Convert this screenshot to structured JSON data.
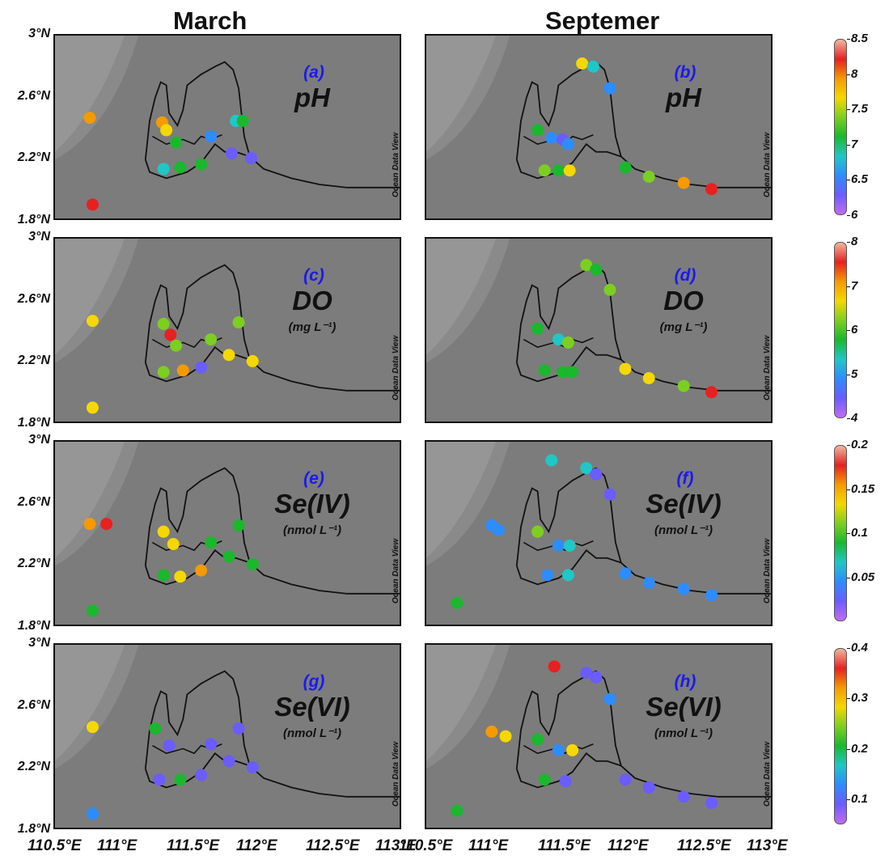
{
  "column_titles": {
    "march": "March",
    "september": "Septemer"
  },
  "y_ticks": [
    "3°N",
    "2.6°N",
    "2.2°N",
    "1.8°N"
  ],
  "x_ticks": [
    "110.5°E",
    "111°E",
    "111.5°E",
    "112°E",
    "112.5°E",
    "113°E"
  ],
  "watermark": "Ocean Data View",
  "panels": [
    {
      "letter": "(a)",
      "variable": "pH",
      "unit": "",
      "month": "March",
      "points": [
        [
          110.75,
          2.47,
          8.05
        ],
        [
          111.27,
          2.44,
          7.85
        ],
        [
          111.3,
          2.39,
          7.55
        ],
        [
          111.37,
          2.31,
          7.1
        ],
        [
          111.28,
          2.14,
          6.9
        ],
        [
          111.4,
          2.15,
          7.0
        ],
        [
          111.55,
          2.17,
          7.0
        ],
        [
          111.62,
          2.35,
          6.6
        ],
        [
          111.77,
          2.24,
          6.35
        ],
        [
          111.8,
          2.45,
          6.8
        ],
        [
          111.85,
          2.45,
          7.1
        ],
        [
          111.91,
          2.21,
          6.2
        ],
        [
          110.77,
          1.91,
          8.1
        ]
      ]
    },
    {
      "letter": "(b)",
      "variable": "pH",
      "unit": "",
      "month": "Septemer",
      "points": [
        [
          111.62,
          2.82,
          7.6
        ],
        [
          111.7,
          2.8,
          6.8
        ],
        [
          111.82,
          2.66,
          6.5
        ],
        [
          111.3,
          2.39,
          7.1
        ],
        [
          111.4,
          2.34,
          6.6
        ],
        [
          111.48,
          2.33,
          6.3
        ],
        [
          111.52,
          2.3,
          6.5
        ],
        [
          111.35,
          2.13,
          7.5
        ],
        [
          111.45,
          2.13,
          7.1
        ],
        [
          111.53,
          2.13,
          7.6
        ],
        [
          111.93,
          2.15,
          7.2
        ],
        [
          112.1,
          2.09,
          7.4
        ],
        [
          112.35,
          2.05,
          8.0
        ],
        [
          112.55,
          2.01,
          8.1
        ]
      ]
    },
    {
      "letter": "(c)",
      "variable": "DO",
      "unit": "(mg L⁻¹)",
      "month": "March",
      "points": [
        [
          110.77,
          2.47,
          6.8
        ],
        [
          111.28,
          2.45,
          6.3
        ],
        [
          111.33,
          2.38,
          7.5
        ],
        [
          111.37,
          2.31,
          6.4
        ],
        [
          111.28,
          2.14,
          6.2
        ],
        [
          111.42,
          2.15,
          6.9
        ],
        [
          111.55,
          2.17,
          4.6
        ],
        [
          111.62,
          2.35,
          6.2
        ],
        [
          111.75,
          2.25,
          6.8
        ],
        [
          111.82,
          2.46,
          6.2
        ],
        [
          111.92,
          2.21,
          6.6
        ],
        [
          110.77,
          1.91,
          6.8
        ]
      ]
    },
    {
      "letter": "(d)",
      "variable": "DO",
      "unit": "(mg L⁻¹)",
      "month": "Septemer",
      "points": [
        [
          111.65,
          2.83,
          6.1
        ],
        [
          111.72,
          2.8,
          5.9
        ],
        [
          111.82,
          2.67,
          6.2
        ],
        [
          111.3,
          2.42,
          5.6
        ],
        [
          111.45,
          2.35,
          5.5
        ],
        [
          111.52,
          2.33,
          6.1
        ],
        [
          111.35,
          2.15,
          5.7
        ],
        [
          111.48,
          2.14,
          5.8
        ],
        [
          111.55,
          2.14,
          5.9
        ],
        [
          111.93,
          2.16,
          6.5
        ],
        [
          112.1,
          2.1,
          6.8
        ],
        [
          112.35,
          2.05,
          6.3
        ],
        [
          112.55,
          2.01,
          7.4
        ]
      ]
    },
    {
      "letter": "(e)",
      "variable": "Se(IV)",
      "unit": "(nmol L⁻¹)",
      "month": "March",
      "points": [
        [
          110.75,
          2.47,
          0.16
        ],
        [
          110.87,
          2.47,
          0.17
        ],
        [
          111.28,
          2.42,
          0.14
        ],
        [
          111.35,
          2.34,
          0.13
        ],
        [
          111.28,
          2.14,
          0.09
        ],
        [
          111.4,
          2.13,
          0.13
        ],
        [
          111.55,
          2.17,
          0.15
        ],
        [
          111.62,
          2.35,
          0.09
        ],
        [
          111.75,
          2.26,
          0.09
        ],
        [
          111.82,
          2.46,
          0.08
        ],
        [
          111.92,
          2.21,
          0.09
        ],
        [
          110.77,
          1.91,
          0.09
        ]
      ]
    },
    {
      "letter": "(f)",
      "variable": "Se(IV)",
      "unit": "(nmol L⁻¹)",
      "month": "Septemer",
      "points": [
        [
          111.4,
          2.88,
          0.06
        ],
        [
          111.65,
          2.83,
          0.06
        ],
        [
          111.72,
          2.79,
          0.03
        ],
        [
          111.82,
          2.66,
          0.02
        ],
        [
          111.3,
          2.42,
          0.1
        ],
        [
          111.45,
          2.33,
          0.05
        ],
        [
          111.53,
          2.33,
          0.06
        ],
        [
          111.37,
          2.14,
          0.04
        ],
        [
          111.52,
          2.14,
          0.06
        ],
        [
          110.97,
          2.46,
          0.05
        ],
        [
          111.02,
          2.43,
          0.05
        ],
        [
          111.93,
          2.15,
          0.04
        ],
        [
          112.1,
          2.09,
          0.035
        ],
        [
          112.35,
          2.05,
          0.035
        ],
        [
          112.55,
          2.01,
          0.035
        ],
        [
          110.72,
          1.96,
          0.09
        ]
      ]
    },
    {
      "letter": "(g)",
      "variable": "Se(VI)",
      "unit": "(nmol L⁻¹)",
      "month": "March",
      "points": [
        [
          110.77,
          2.47,
          0.29
        ],
        [
          111.22,
          2.46,
          0.22
        ],
        [
          111.32,
          2.35,
          0.1
        ],
        [
          111.25,
          2.13,
          0.08
        ],
        [
          111.4,
          2.13,
          0.2
        ],
        [
          111.55,
          2.16,
          0.08
        ],
        [
          111.62,
          2.36,
          0.08
        ],
        [
          111.75,
          2.25,
          0.08
        ],
        [
          111.82,
          2.46,
          0.07
        ],
        [
          111.92,
          2.21,
          0.08
        ],
        [
          110.77,
          1.91,
          0.14
        ]
      ]
    },
    {
      "letter": "(h)",
      "variable": "Se(VI)",
      "unit": "(nmol L⁻¹)",
      "month": "Septemer",
      "points": [
        [
          111.42,
          2.86,
          0.36
        ],
        [
          111.65,
          2.82,
          0.1
        ],
        [
          111.72,
          2.79,
          0.1
        ],
        [
          111.82,
          2.65,
          0.11
        ],
        [
          110.97,
          2.44,
          0.33
        ],
        [
          111.07,
          2.41,
          0.3
        ],
        [
          111.3,
          2.39,
          0.22
        ],
        [
          111.45,
          2.32,
          0.12
        ],
        [
          111.55,
          2.32,
          0.3
        ],
        [
          111.35,
          2.13,
          0.2
        ],
        [
          111.5,
          2.12,
          0.07
        ],
        [
          111.93,
          2.13,
          0.08
        ],
        [
          112.1,
          2.08,
          0.08
        ],
        [
          112.35,
          2.02,
          0.08
        ],
        [
          112.55,
          1.98,
          0.08
        ],
        [
          110.72,
          1.93,
          0.2
        ]
      ]
    }
  ],
  "colorbars": [
    {
      "ticks": [
        "8.5",
        "8",
        "7.5",
        "7",
        "6.5",
        "6"
      ],
      "min": 6,
      "max": 8.5
    },
    {
      "ticks": [
        "8",
        "7",
        "6",
        "5",
        "4"
      ],
      "min": 4,
      "max": 8
    },
    {
      "ticks": [
        "0.2",
        "0.15",
        "0.1",
        "0.05"
      ],
      "min": 0,
      "max": 0.2
    },
    {
      "ticks": [
        "0.4",
        "0.3",
        "0.2",
        "0.1"
      ],
      "min": 0.05,
      "max": 0.4
    }
  ],
  "map_extent": {
    "lon": [
      110.5,
      113
    ],
    "lat": [
      1.8,
      3.0
    ]
  }
}
